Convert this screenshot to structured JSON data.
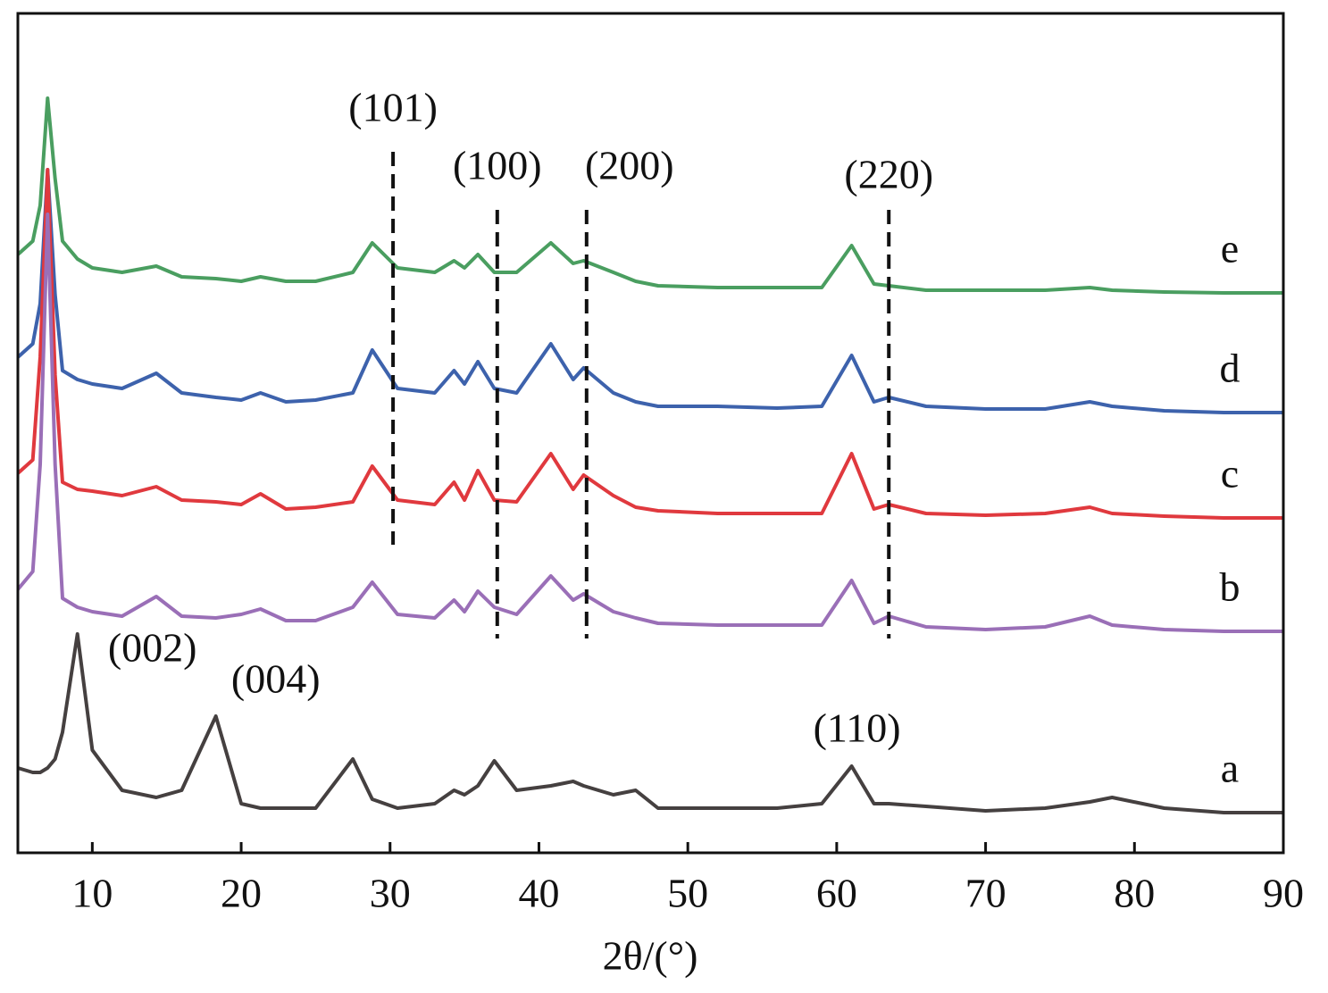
{
  "chart_data": {
    "type": "line",
    "xlabel": "2θ/(°)",
    "xlim": [
      5,
      90
    ],
    "xticks": [
      10,
      20,
      30,
      40,
      50,
      60,
      70,
      80,
      90
    ],
    "ylim": [
      0,
      940
    ],
    "x": [
      5,
      6,
      6.5,
      7,
      7.5,
      8,
      9,
      10,
      12,
      14.3,
      16,
      18.3,
      20,
      21.3,
      23,
      25,
      27.5,
      28.8,
      30.5,
      33,
      34.3,
      35,
      35.9,
      37,
      38.5,
      40.8,
      42.3,
      43,
      45,
      46.5,
      48,
      52,
      56,
      59,
      61,
      62.5,
      63.5,
      66,
      70,
      74,
      77,
      78.5,
      82,
      86,
      90
    ],
    "series": [
      {
        "name": "e",
        "color": "#4a9e60",
        "values": [
          670,
          685,
          725,
          845,
          755,
          685,
          665,
          655,
          650,
          657,
          645,
          643,
          640,
          645,
          640,
          640,
          650,
          683,
          655,
          650,
          663,
          655,
          670,
          650,
          650,
          683,
          660,
          663,
          650,
          640,
          635,
          633,
          633,
          633,
          680,
          637,
          635,
          630,
          630,
          630,
          633,
          630,
          628,
          627,
          627
        ]
      },
      {
        "name": "d",
        "color": "#3d62ac",
        "values": [
          555,
          570,
          615,
          765,
          625,
          540,
          530,
          525,
          520,
          537,
          515,
          510,
          507,
          515,
          505,
          507,
          515,
          563,
          520,
          515,
          540,
          525,
          550,
          520,
          515,
          570,
          530,
          543,
          515,
          505,
          500,
          500,
          498,
          500,
          557,
          505,
          510,
          500,
          497,
          497,
          505,
          500,
          495,
          493,
          493
        ]
      },
      {
        "name": "c",
        "color": "#e0393e",
        "values": [
          425,
          440,
          555,
          765,
          535,
          415,
          407,
          405,
          400,
          410,
          395,
          393,
          390,
          402,
          385,
          387,
          393,
          433,
          395,
          390,
          415,
          395,
          428,
          395,
          393,
          447,
          407,
          423,
          400,
          387,
          383,
          380,
          380,
          380,
          447,
          385,
          390,
          380,
          378,
          380,
          387,
          380,
          377,
          375,
          375
        ]
      },
      {
        "name": "b",
        "color": "#9a6fb7",
        "values": [
          295,
          315,
          435,
          715,
          435,
          285,
          275,
          270,
          265,
          287,
          265,
          263,
          267,
          273,
          260,
          260,
          275,
          303,
          267,
          263,
          283,
          270,
          293,
          275,
          267,
          310,
          283,
          290,
          270,
          263,
          257,
          255,
          255,
          255,
          305,
          257,
          265,
          253,
          250,
          253,
          265,
          255,
          250,
          248,
          248
        ]
      },
      {
        "name": "a",
        "color": "#454040",
        "values": [
          95,
          90,
          90,
          95,
          105,
          135,
          245,
          115,
          70,
          62,
          70,
          153,
          55,
          50,
          50,
          50,
          105,
          60,
          50,
          55,
          70,
          65,
          75,
          103,
          70,
          75,
          80,
          75,
          65,
          70,
          50,
          50,
          50,
          55,
          97,
          55,
          55,
          52,
          47,
          50,
          57,
          62,
          50,
          45,
          45
        ]
      }
    ],
    "annotations": [
      {
        "text": "(101)",
        "x": 30.2,
        "dashed": true
      },
      {
        "text": "(100)",
        "x": 37.2,
        "dashed": true
      },
      {
        "text": "(200)",
        "x": 43.2,
        "dashed": true
      },
      {
        "text": "(220)",
        "x": 63.5,
        "dashed": true
      },
      {
        "text": "(002)",
        "x": 9,
        "dashed": false
      },
      {
        "text": "(004)",
        "x": 18.3,
        "dashed": false
      },
      {
        "text": "(110)",
        "x": 61,
        "dashed": false
      }
    ]
  }
}
